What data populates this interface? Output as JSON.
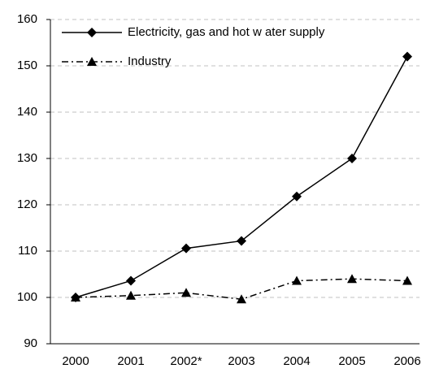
{
  "chart_data": {
    "type": "line",
    "categories": [
      "2000",
      "2001",
      "2002*",
      "2003",
      "2004",
      "2005",
      "2006"
    ],
    "series": [
      {
        "name": "Electricity, gas and hot w ater supply",
        "color": "#000000",
        "marker": "diamond",
        "dash": "solid",
        "values": [
          100,
          103.6,
          110.6,
          112.2,
          121.8,
          130,
          152
        ]
      },
      {
        "name": "Industry",
        "color": "#000000",
        "marker": "triangle",
        "dash": "dashdot",
        "values": [
          100,
          100.4,
          101,
          99.6,
          103.6,
          104,
          103.6
        ]
      }
    ],
    "ylim": [
      90,
      160
    ],
    "yticks": [
      90,
      100,
      110,
      120,
      130,
      140,
      150,
      160
    ],
    "grid": true,
    "legend": "upper left"
  }
}
